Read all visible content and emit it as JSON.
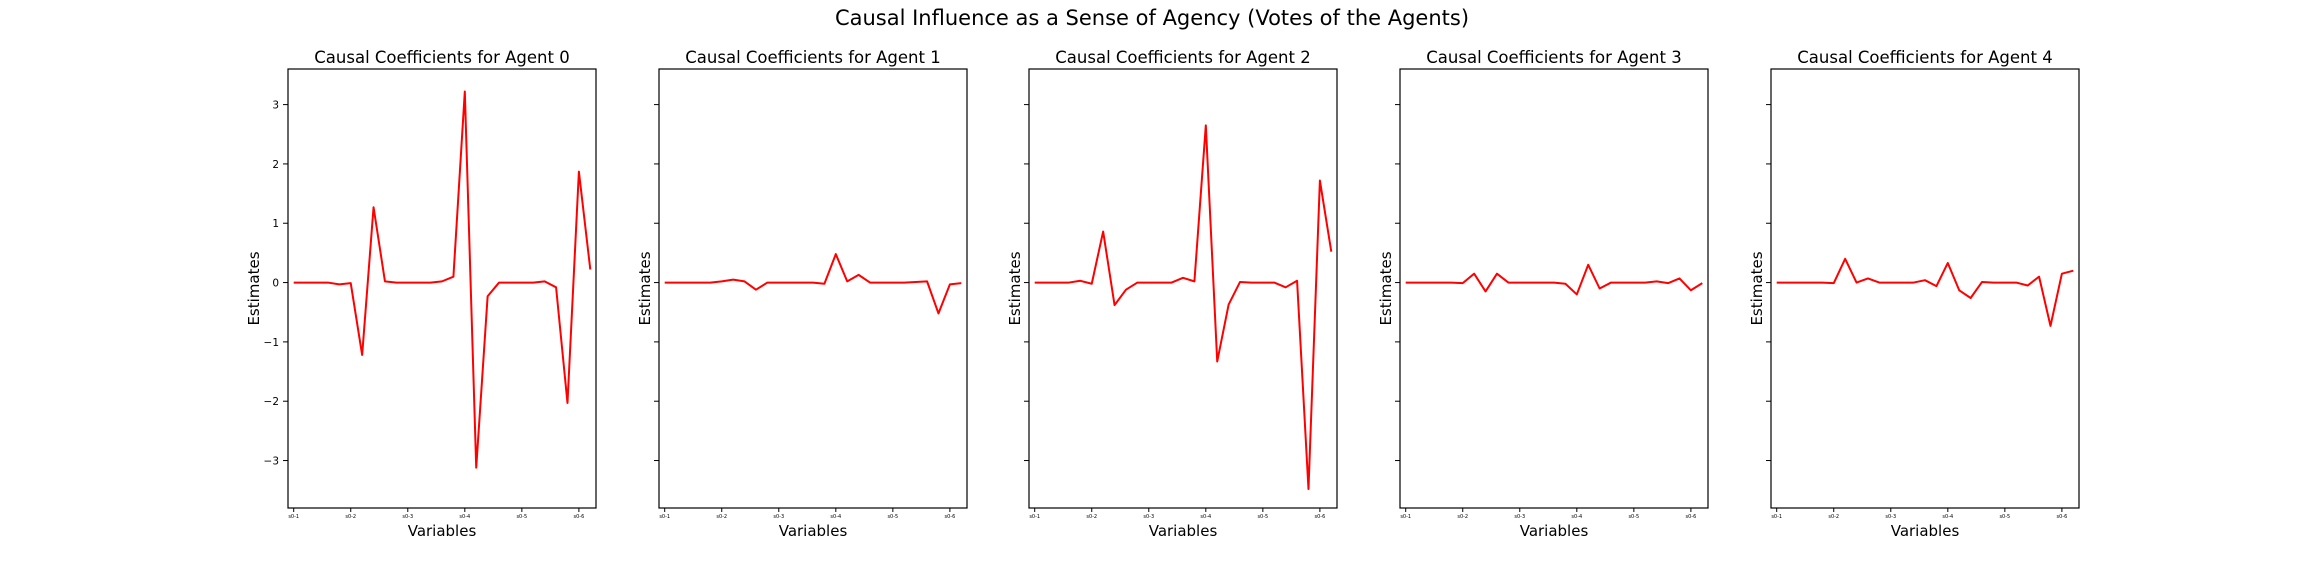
{
  "figure": {
    "suptitle": "Causal Influence as a Sense of Agency (Votes of the Agents)"
  },
  "colors": {
    "line": "#ff0000",
    "axes": "#000000",
    "background": "#ffffff"
  },
  "chart_data": [
    {
      "type": "line",
      "title": "Causal Coefficients for Agent 0",
      "xlabel": "Variables",
      "ylabel": "Estimates",
      "ylim": [
        -3.8,
        3.6
      ],
      "yticks": [
        -3,
        -2,
        -1,
        0,
        1,
        2,
        3
      ],
      "ytick_labels_visible": true,
      "xtick_labels": [
        "s0-1",
        "s0-2",
        "s0-3",
        "s0-4",
        "s0-5",
        "s0-6"
      ],
      "xtick_positions": [
        0,
        5,
        10,
        15,
        20,
        25
      ],
      "grid": false,
      "series": [
        {
          "color": "#ff0000",
          "values": [
            0,
            0,
            0,
            0,
            -0.03,
            -0.01,
            -1.22,
            1.27,
            0.02,
            0,
            0,
            0,
            0,
            0.02,
            0.1,
            3.22,
            -3.12,
            -0.23,
            0,
            0,
            0,
            0,
            0.02,
            -0.08,
            -2.03,
            1.87,
            0.22
          ]
        }
      ]
    },
    {
      "type": "line",
      "title": "Causal Coefficients for Agent 1",
      "xlabel": "Variables",
      "ylabel": "Estimates",
      "ylim": [
        -3.8,
        3.6
      ],
      "yticks": [
        -3,
        -2,
        -1,
        0,
        1,
        2,
        3
      ],
      "ytick_labels_visible": false,
      "xtick_labels": [
        "s0-1",
        "s0-2",
        "s0-3",
        "s0-4",
        "s0-5",
        "s0-6"
      ],
      "xtick_positions": [
        0,
        5,
        10,
        15,
        20,
        25
      ],
      "grid": false,
      "series": [
        {
          "color": "#ff0000",
          "values": [
            0,
            0,
            0,
            0,
            0,
            0.02,
            0.05,
            0.02,
            -0.12,
            0,
            0,
            0,
            0,
            0,
            -0.02,
            0.48,
            0.02,
            0.13,
            0,
            0,
            0,
            0,
            0.01,
            0.02,
            -0.52,
            -0.03,
            -0.01
          ]
        }
      ]
    },
    {
      "type": "line",
      "title": "Causal Coefficients for Agent 2",
      "xlabel": "Variables",
      "ylabel": "Estimates",
      "ylim": [
        -3.8,
        3.6
      ],
      "yticks": [
        -3,
        -2,
        -1,
        0,
        1,
        2,
        3
      ],
      "ytick_labels_visible": false,
      "xtick_labels": [
        "s0-1",
        "s0-2",
        "s0-3",
        "s0-4",
        "s0-5",
        "s0-6"
      ],
      "xtick_positions": [
        0,
        5,
        10,
        15,
        20,
        25
      ],
      "grid": false,
      "series": [
        {
          "color": "#ff0000",
          "values": [
            0,
            0,
            0,
            0,
            0.03,
            -0.02,
            0.86,
            -0.38,
            -0.12,
            0,
            0,
            0,
            0,
            0.08,
            0.02,
            2.65,
            -1.33,
            -0.37,
            0.01,
            0,
            0,
            0,
            -0.08,
            0.03,
            -3.48,
            1.72,
            0.52
          ]
        }
      ]
    },
    {
      "type": "line",
      "title": "Causal Coefficients for Agent 3",
      "xlabel": "Variables",
      "ylabel": "Estimates",
      "ylim": [
        -3.8,
        3.6
      ],
      "yticks": [
        -3,
        -2,
        -1,
        0,
        1,
        2,
        3
      ],
      "ytick_labels_visible": false,
      "xtick_labels": [
        "s0-1",
        "s0-2",
        "s0-3",
        "s0-4",
        "s0-5",
        "s0-6"
      ],
      "xtick_positions": [
        0,
        5,
        10,
        15,
        20,
        25
      ],
      "grid": false,
      "series": [
        {
          "color": "#ff0000",
          "values": [
            0,
            0,
            0,
            0,
            0,
            -0.01,
            0.15,
            -0.15,
            0.15,
            0,
            0,
            0,
            0,
            0,
            -0.02,
            -0.2,
            0.3,
            -0.1,
            0,
            0,
            0,
            0,
            0.02,
            -0.01,
            0.07,
            -0.13,
            -0.01
          ]
        }
      ]
    },
    {
      "type": "line",
      "title": "Causal Coefficients for Agent 4",
      "xlabel": "Variables",
      "ylabel": "Estimates",
      "ylim": [
        -3.8,
        3.6
      ],
      "yticks": [
        -3,
        -2,
        -1,
        0,
        1,
        2,
        3
      ],
      "ytick_labels_visible": false,
      "xtick_labels": [
        "s0-1",
        "s0-2",
        "s0-3",
        "s0-4",
        "s0-5",
        "s0-6"
      ],
      "xtick_positions": [
        0,
        5,
        10,
        15,
        20,
        25
      ],
      "grid": false,
      "series": [
        {
          "color": "#ff0000",
          "values": [
            0,
            0,
            0,
            0,
            0,
            -0.01,
            0.4,
            0,
            0.07,
            0,
            0,
            0,
            0,
            0.04,
            -0.06,
            0.33,
            -0.13,
            -0.26,
            0.01,
            0,
            0,
            0,
            -0.05,
            0.1,
            -0.73,
            0.15,
            0.2
          ]
        }
      ]
    }
  ]
}
